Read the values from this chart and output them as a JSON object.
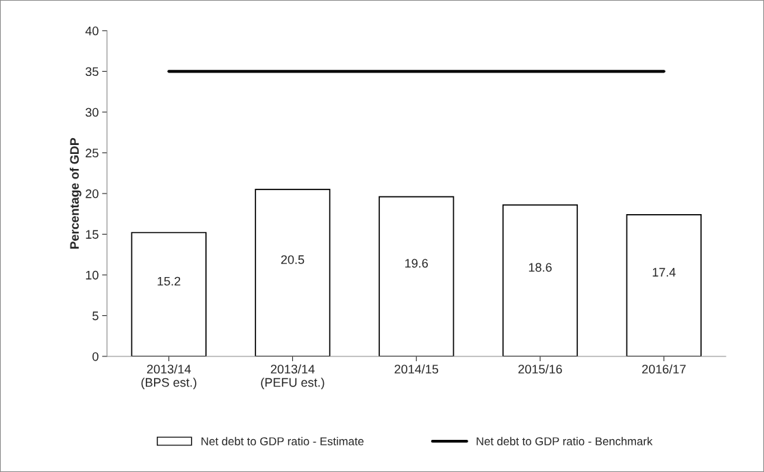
{
  "chart_data": {
    "type": "bar",
    "ylabel": "Percentage of GDP",
    "categories": [
      "2013/14\n(BPS est.)",
      "2013/14\n(PEFU est.)",
      "2014/15",
      "2015/16",
      "2016/17"
    ],
    "series": [
      {
        "name": "Net debt to GDP ratio - Estimate",
        "type": "bar",
        "color": "#ffffff",
        "values": [
          15.2,
          20.5,
          19.6,
          18.6,
          17.4
        ],
        "value_labels": [
          "15.2",
          "20.5",
          "19.6",
          "18.6",
          "17.4"
        ]
      },
      {
        "name": "Net debt to GDP ratio - Benchmark",
        "type": "line",
        "color": "#000000",
        "values": [
          35,
          35,
          35,
          35,
          35
        ]
      }
    ],
    "ylim": [
      0,
      40
    ],
    "yticks": [
      0,
      5,
      10,
      15,
      20,
      25,
      30,
      35,
      40
    ],
    "legend": "bottom",
    "grid": false
  }
}
